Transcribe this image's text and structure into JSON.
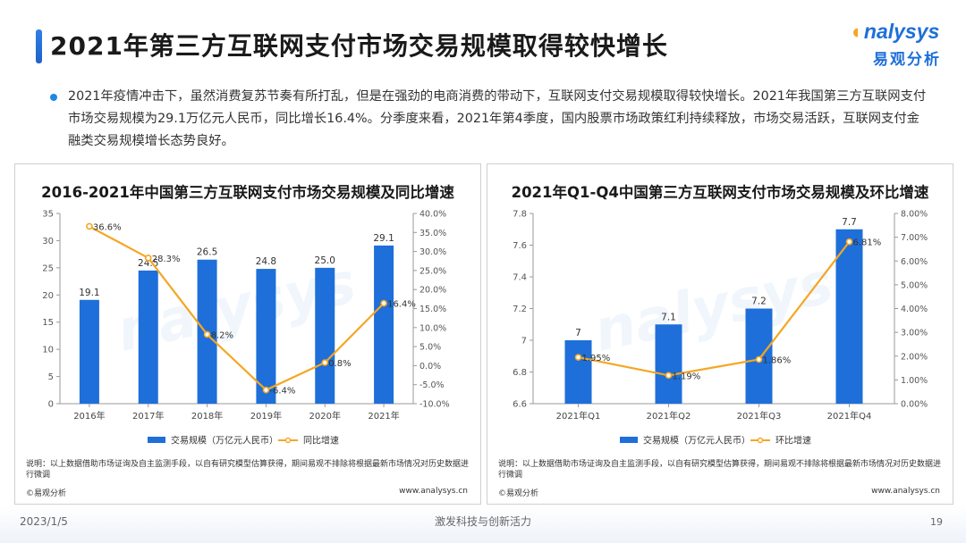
{
  "page": {
    "title": "2021年第三方互联网支付市场交易规模取得较快增长",
    "logo_en": "nalysys",
    "logo_cn": "易观分析",
    "summary": "2021年疫情冲击下，虽然消费复苏节奏有所打乱，但是在强劲的电商消费的带动下，互联网支付交易规模取得较快增长。2021年我国第三方互联网支付市场交易规模为29.1万亿元人民币，同比增长16.4%。分季度来看，2021年第4季度，国内股票市场政策红利持续释放，市场交易活跃，互联网支付金融类交易规模增长态势良好。",
    "footer_date": "2023/1/5",
    "footer_slogan": "激发科技与创新活力",
    "footer_page": "19",
    "colors": {
      "bar": "#1e6fd9",
      "line": "#f5a623",
      "accent": "#1e88e5"
    }
  },
  "chart_data": [
    {
      "type": "bar",
      "title": "2016-2021年中国第三方互联网支付市场交易规模及同比增速",
      "categories": [
        "2016年",
        "2017年",
        "2018年",
        "2019年",
        "2020年",
        "2021年"
      ],
      "series": [
        {
          "name": "交易规模（万亿元人民币）",
          "type": "bar",
          "axis": "left",
          "values": [
            19.1,
            24.5,
            26.5,
            24.8,
            25.0,
            29.1
          ],
          "labels": [
            "19.1",
            "24.5",
            "26.5",
            "24.8",
            "25.0",
            "29.1"
          ]
        },
        {
          "name": "同比增速",
          "type": "line",
          "axis": "right",
          "values": [
            36.6,
            28.3,
            8.2,
            -6.4,
            0.8,
            16.4
          ],
          "labels": [
            "36.6%",
            "28.3%",
            "8.2%",
            "-6.4%",
            "0.8%",
            "16.4%"
          ]
        }
      ],
      "y_left": {
        "min": 0,
        "max": 35,
        "ticks": [
          "0",
          "5",
          "10",
          "15",
          "20",
          "25",
          "30",
          "35"
        ]
      },
      "y_right": {
        "min": -10,
        "max": 40,
        "ticks": [
          "-10.0%",
          "-5.0%",
          "0.0%",
          "5.0%",
          "10.0%",
          "15.0%",
          "20.0%",
          "25.0%",
          "30.0%",
          "35.0%",
          "40.0%"
        ]
      },
      "legend_position": "bottom",
      "note": "说明：以上数据借助市场证询及自主监测手段，以自有研究模型估算获得，期间易观不排除将根据最新市场情况对历史数据进行微调",
      "source": "©易观分析",
      "website": "www.analysys.cn"
    },
    {
      "type": "bar",
      "title": "2021年Q1-Q4中国第三方互联网支付市场交易规模及环比增速",
      "categories": [
        "2021年Q1",
        "2021年Q2",
        "2021年Q3",
        "2021年Q4"
      ],
      "series": [
        {
          "name": "交易规模（万亿元人民币）",
          "type": "bar",
          "axis": "left",
          "values": [
            7.0,
            7.1,
            7.2,
            7.7
          ],
          "labels": [
            "7",
            "7.1",
            "7.2",
            "7.7"
          ]
        },
        {
          "name": "环比增速",
          "type": "line",
          "axis": "right",
          "values": [
            1.95,
            1.19,
            1.86,
            6.81
          ],
          "labels": [
            "1.95%",
            "1.19%",
            "1.86%",
            "6.81%"
          ]
        }
      ],
      "y_left": {
        "min": 6.6,
        "max": 7.8,
        "ticks": [
          "6.6",
          "6.8",
          "7",
          "7.2",
          "7.4",
          "7.6",
          "7.8"
        ]
      },
      "y_right": {
        "min": 0,
        "max": 8,
        "ticks": [
          "0.00%",
          "1.00%",
          "2.00%",
          "3.00%",
          "4.00%",
          "5.00%",
          "6.00%",
          "7.00%",
          "8.00%"
        ]
      },
      "legend_position": "bottom",
      "note": "说明：以上数据借助市场证询及自主监测手段，以自有研究模型估算获得，期间易观不排除将根据最新市场情况对历史数据进行微调",
      "source": "©易观分析",
      "website": "www.analysys.cn"
    }
  ]
}
